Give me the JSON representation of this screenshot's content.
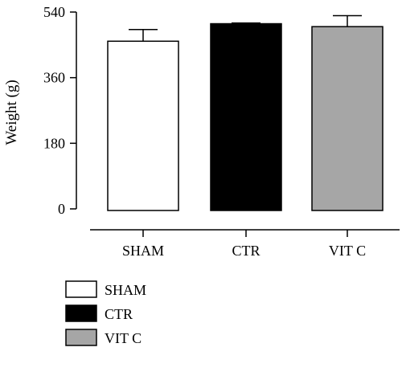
{
  "chart_data": {
    "type": "bar",
    "title": "",
    "xlabel": "",
    "ylabel": "Weight (g)",
    "ylim": [
      0,
      540
    ],
    "yticks": [
      0,
      180,
      360,
      540
    ],
    "categories": [
      "SHAM",
      "CTR",
      "VIT C"
    ],
    "values": [
      460,
      508,
      500
    ],
    "errors": [
      32,
      2,
      30
    ],
    "colors": [
      "#ffffff",
      "#000000",
      "#a6a6a6"
    ],
    "grid": false,
    "legend": {
      "position": "bottom-left",
      "entries": [
        "SHAM",
        "CTR",
        "VIT C"
      ]
    }
  }
}
